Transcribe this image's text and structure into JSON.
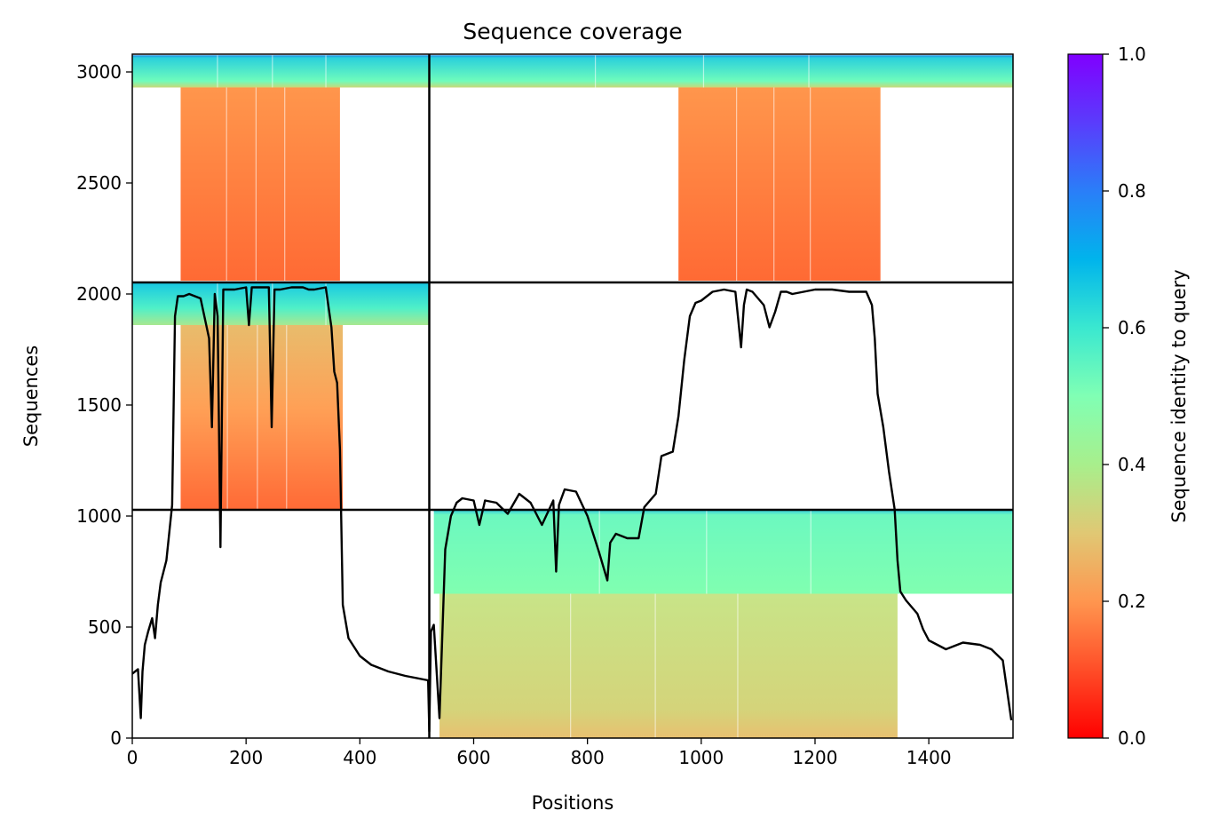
{
  "chart_data": {
    "type": "heatmap",
    "title": "Sequence coverage",
    "xlabel": "Positions",
    "ylabel": "Sequences",
    "xlim": [
      0,
      1548
    ],
    "ylim": [
      0,
      3080
    ],
    "xticks": [
      0,
      200,
      400,
      600,
      800,
      1000,
      1200,
      1400
    ],
    "yticks": [
      0,
      500,
      1000,
      1500,
      2000,
      2500,
      3000
    ],
    "colormap": "rainbow_r",
    "colorbar": {
      "label": "Sequence identity to query",
      "range": [
        0,
        1
      ],
      "ticks": [
        0.0,
        0.2,
        0.4,
        0.6,
        0.8,
        1.0
      ],
      "tick_labels": [
        "0.0",
        "0.2",
        "0.4",
        "0.6",
        "0.8",
        "1.0"
      ]
    },
    "chain_boundaries": {
      "x": [
        522
      ],
      "y": [
        1028,
        2052
      ]
    },
    "coverage_blocks": [
      {
        "x0": 0,
        "x1": 522,
        "y0": 2930,
        "y1": 3075,
        "identity": 0.6
      },
      {
        "x0": 85,
        "x1": 365,
        "y0": 2060,
        "y1": 2930,
        "identity": 0.2
      },
      {
        "x0": 520,
        "x1": 1548,
        "y0": 2930,
        "y1": 3075,
        "identity": 0.6
      },
      {
        "x0": 960,
        "x1": 1315,
        "y0": 2060,
        "y1": 2930,
        "identity": 0.2
      },
      {
        "x0": 0,
        "x1": 522,
        "y0": 1860,
        "y1": 2050,
        "identity": 0.6
      },
      {
        "x0": 85,
        "x1": 370,
        "y0": 1030,
        "y1": 1860,
        "identity": 0.25
      },
      {
        "x0": 530,
        "x1": 1548,
        "y0": 650,
        "y1": 1028,
        "identity": 0.5
      },
      {
        "x0": 540,
        "x1": 1345,
        "y0": 0,
        "y1": 650,
        "identity": 0.35
      }
    ],
    "coverage_line": {
      "x": [
        0,
        10,
        15,
        18,
        22,
        28,
        35,
        40,
        45,
        50,
        55,
        60,
        70,
        75,
        80,
        85,
        90,
        100,
        120,
        135,
        140,
        145,
        150,
        155,
        160,
        180,
        200,
        205,
        210,
        220,
        230,
        240,
        245,
        250,
        260,
        280,
        300,
        310,
        320,
        340,
        350,
        355,
        360,
        365,
        370,
        380,
        400,
        420,
        450,
        480,
        520,
        522,
        525,
        530,
        540,
        550,
        560,
        565,
        570,
        580,
        600,
        610,
        620,
        640,
        660,
        680,
        700,
        720,
        740,
        745,
        750,
        760,
        780,
        800,
        820,
        835,
        840,
        850,
        870,
        890,
        900,
        920,
        930,
        950,
        960,
        970,
        980,
        990,
        1000,
        1020,
        1040,
        1060,
        1070,
        1075,
        1080,
        1090,
        1110,
        1120,
        1130,
        1140,
        1150,
        1160,
        1180,
        1200,
        1230,
        1260,
        1290,
        1300,
        1305,
        1310,
        1320,
        1330,
        1340,
        1345,
        1350,
        1360,
        1380,
        1390,
        1400,
        1430,
        1460,
        1490,
        1510,
        1530,
        1545
      ],
      "y": [
        290,
        310,
        90,
        300,
        420,
        480,
        540,
        450,
        600,
        700,
        750,
        800,
        1050,
        1900,
        1990,
        1990,
        1990,
        2000,
        1980,
        1800,
        1400,
        2000,
        1900,
        860,
        2020,
        2020,
        2030,
        1860,
        2030,
        2030,
        2030,
        2030,
        1400,
        2020,
        2020,
        2030,
        2030,
        2020,
        2020,
        2030,
        1850,
        1650,
        1600,
        1300,
        600,
        450,
        370,
        330,
        300,
        280,
        260,
        30,
        480,
        510,
        90,
        850,
        1000,
        1030,
        1060,
        1080,
        1070,
        960,
        1070,
        1060,
        1010,
        1100,
        1060,
        960,
        1070,
        750,
        1050,
        1120,
        1110,
        1000,
        840,
        710,
        880,
        920,
        900,
        900,
        1040,
        1100,
        1270,
        1290,
        1450,
        1700,
        1900,
        1960,
        1970,
        2010,
        2020,
        2010,
        1760,
        1950,
        2020,
        2010,
        1950,
        1850,
        1920,
        2010,
        2010,
        2000,
        2010,
        2020,
        2020,
        2010,
        2010,
        1950,
        1800,
        1550,
        1400,
        1200,
        1030,
        800,
        660,
        620,
        560,
        490,
        440,
        400,
        430,
        420,
        400,
        350,
        80
      ]
    }
  }
}
